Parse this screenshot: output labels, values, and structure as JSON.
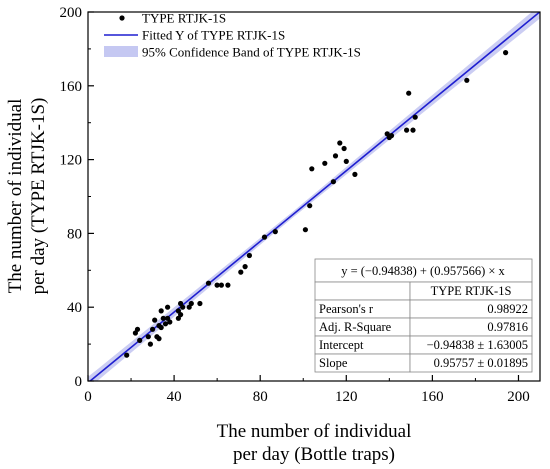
{
  "chart_data": {
    "type": "scatter",
    "x_axis": {
      "label_lines": [
        "The number of individual",
        "per day (Bottle traps)"
      ],
      "ticks": [
        0,
        40,
        80,
        120,
        160,
        200
      ],
      "range": [
        0,
        210
      ]
    },
    "y_axis": {
      "label_lines": [
        "The number of individual",
        "per day (TYPE RTJK-1S)"
      ],
      "ticks": [
        0,
        40,
        80,
        120,
        160,
        200
      ],
      "range": [
        0,
        200
      ]
    },
    "legend": {
      "placement": "top-left",
      "entries": [
        "TYPE RTJK-1S",
        "Fitted Y of TYPE RTJK-1S",
        "95% Confidence Band of TYPE RTJK-1S"
      ]
    },
    "fit": {
      "intercept": -0.94838,
      "slope": 0.957566,
      "band_half_width": [
        3.2,
        1.6,
        3.6
      ]
    },
    "stats_table": {
      "placement": "bottom-right",
      "equation": "y = (−0.94838) + (0.957566) × x",
      "column_header": "TYPE RTJK-1S",
      "rows": [
        {
          "label": "Pearson's r",
          "value": "0.98922"
        },
        {
          "label": "Adj. R-Square",
          "value": "0.97816"
        },
        {
          "label": "Intercept",
          "value": "−0.94838 ± 1.63005"
        },
        {
          "label": "Slope",
          "value": "0.95757 ± 0.01895"
        }
      ]
    },
    "colors": {
      "points": "#000000",
      "fit_line": "#1f1fd0",
      "band": "#c5c8f2"
    },
    "points": [
      {
        "x": 18,
        "y": 14
      },
      {
        "x": 22,
        "y": 26
      },
      {
        "x": 23,
        "y": 28
      },
      {
        "x": 24,
        "y": 22
      },
      {
        "x": 28,
        "y": 24
      },
      {
        "x": 29,
        "y": 20
      },
      {
        "x": 30,
        "y": 28
      },
      {
        "x": 31,
        "y": 33
      },
      {
        "x": 32,
        "y": 24
      },
      {
        "x": 33,
        "y": 23
      },
      {
        "x": 33,
        "y": 30
      },
      {
        "x": 34,
        "y": 29
      },
      {
        "x": 34,
        "y": 38
      },
      {
        "x": 35,
        "y": 34
      },
      {
        "x": 36,
        "y": 31
      },
      {
        "x": 37,
        "y": 34
      },
      {
        "x": 37,
        "y": 40
      },
      {
        "x": 38,
        "y": 32
      },
      {
        "x": 42,
        "y": 38
      },
      {
        "x": 42,
        "y": 34
      },
      {
        "x": 43,
        "y": 36
      },
      {
        "x": 44,
        "y": 40
      },
      {
        "x": 43,
        "y": 42
      },
      {
        "x": 47,
        "y": 40
      },
      {
        "x": 48,
        "y": 42
      },
      {
        "x": 52,
        "y": 42
      },
      {
        "x": 56,
        "y": 53
      },
      {
        "x": 60,
        "y": 52
      },
      {
        "x": 62,
        "y": 52
      },
      {
        "x": 65,
        "y": 52
      },
      {
        "x": 71,
        "y": 59
      },
      {
        "x": 73,
        "y": 62
      },
      {
        "x": 75,
        "y": 68
      },
      {
        "x": 82,
        "y": 78
      },
      {
        "x": 87,
        "y": 81
      },
      {
        "x": 101,
        "y": 82
      },
      {
        "x": 103,
        "y": 95
      },
      {
        "x": 104,
        "y": 115
      },
      {
        "x": 110,
        "y": 118
      },
      {
        "x": 114,
        "y": 108
      },
      {
        "x": 115,
        "y": 122
      },
      {
        "x": 117,
        "y": 129
      },
      {
        "x": 119,
        "y": 126
      },
      {
        "x": 120,
        "y": 119
      },
      {
        "x": 124,
        "y": 112
      },
      {
        "x": 139,
        "y": 134
      },
      {
        "x": 140,
        "y": 132
      },
      {
        "x": 141,
        "y": 133
      },
      {
        "x": 148,
        "y": 136
      },
      {
        "x": 149,
        "y": 156
      },
      {
        "x": 151,
        "y": 136
      },
      {
        "x": 152,
        "y": 143
      },
      {
        "x": 176,
        "y": 163
      },
      {
        "x": 194,
        "y": 178
      }
    ]
  }
}
